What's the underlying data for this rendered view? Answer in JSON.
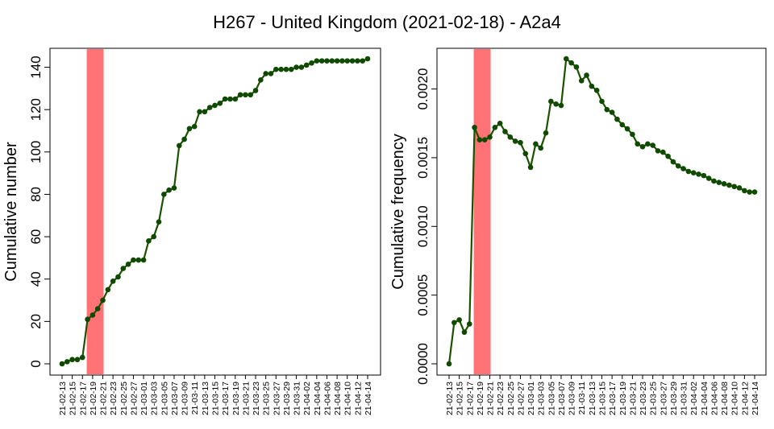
{
  "title": "H267 - United Kingdom (2021-02-18) - A2a4",
  "colors": {
    "line": "#1a5200",
    "point": "#0f4a00",
    "highlight": "#ff7276",
    "axis": "#000000"
  },
  "chart_data": [
    {
      "type": "line",
      "ylabel": "Cumulative number",
      "ylim": [
        0,
        144
      ],
      "yticks": [
        "0",
        "20",
        "40",
        "60",
        "80",
        "100",
        "120",
        "140"
      ],
      "highlight_x": [
        "21-02-18",
        "21-02-21"
      ],
      "x": [
        "21-02-13",
        "21-02-14",
        "21-02-15",
        "21-02-16",
        "21-02-17",
        "21-02-18",
        "21-02-19",
        "21-02-20",
        "21-02-21",
        "21-02-22",
        "21-02-23",
        "21-02-24",
        "21-02-25",
        "21-02-26",
        "21-02-27",
        "21-02-28",
        "21-03-01",
        "21-03-02",
        "21-03-03",
        "21-03-04",
        "21-03-05",
        "21-03-06",
        "21-03-07",
        "21-03-08",
        "21-03-09",
        "21-03-10",
        "21-03-11",
        "21-03-12",
        "21-03-13",
        "21-03-14",
        "21-03-15",
        "21-03-16",
        "21-03-17",
        "21-03-18",
        "21-03-19",
        "21-03-20",
        "21-03-21",
        "21-03-22",
        "21-03-23",
        "21-03-24",
        "21-03-25",
        "21-03-26",
        "21-03-27",
        "21-03-28",
        "21-03-29",
        "21-03-30",
        "21-03-31",
        "21-04-01",
        "21-04-02",
        "21-04-03",
        "21-04-04",
        "21-04-05",
        "21-04-06",
        "21-04-07",
        "21-04-08",
        "21-04-09",
        "21-04-10",
        "21-04-11",
        "21-04-12",
        "21-04-13",
        "21-04-14"
      ],
      "xtick_labels": [
        "21-02-13",
        "21-02-15",
        "21-02-17",
        "21-02-19",
        "21-02-21",
        "21-02-23",
        "21-02-25",
        "21-02-27",
        "21-03-01",
        "21-03-03",
        "21-03-05",
        "21-03-07",
        "21-03-09",
        "21-03-11",
        "21-03-13",
        "21-03-15",
        "21-03-17",
        "21-03-19",
        "21-03-21",
        "21-03-23",
        "21-03-25",
        "21-03-27",
        "21-03-29",
        "21-03-31",
        "21-04-02",
        "21-04-04",
        "21-04-06",
        "21-04-08",
        "21-04-10",
        "21-04-12",
        "21-04-14"
      ],
      "values": [
        0,
        1,
        2,
        2,
        3,
        21,
        23,
        26,
        30,
        35,
        39,
        41,
        45,
        47,
        49,
        49,
        49,
        58,
        60,
        67,
        80,
        82,
        83,
        103,
        106,
        111,
        112,
        119,
        119,
        121,
        122,
        123,
        125,
        125,
        125,
        127,
        127,
        127,
        129,
        134,
        137,
        137,
        139,
        139,
        139,
        139,
        140,
        140,
        141,
        142,
        143,
        143,
        143,
        143,
        143,
        143,
        143,
        143,
        143,
        143,
        144
      ]
    },
    {
      "type": "line",
      "ylabel": "Cumulative frequency",
      "ylim": [
        0,
        0.00222
      ],
      "yticks": [
        "0.0000",
        "0.0005",
        "0.0010",
        "0.0015",
        "0.0020"
      ],
      "highlight_x": [
        "21-02-18",
        "21-02-21"
      ],
      "x": [
        "21-02-13",
        "21-02-14",
        "21-02-15",
        "21-02-16",
        "21-02-17",
        "21-02-18",
        "21-02-19",
        "21-02-20",
        "21-02-21",
        "21-02-22",
        "21-02-23",
        "21-02-24",
        "21-02-25",
        "21-02-26",
        "21-02-27",
        "21-02-28",
        "21-03-01",
        "21-03-02",
        "21-03-03",
        "21-03-04",
        "21-03-05",
        "21-03-06",
        "21-03-07",
        "21-03-08",
        "21-03-09",
        "21-03-10",
        "21-03-11",
        "21-03-12",
        "21-03-13",
        "21-03-14",
        "21-03-15",
        "21-03-16",
        "21-03-17",
        "21-03-18",
        "21-03-19",
        "21-03-20",
        "21-03-21",
        "21-03-22",
        "21-03-23",
        "21-03-24",
        "21-03-25",
        "21-03-26",
        "21-03-27",
        "21-03-28",
        "21-03-29",
        "21-03-30",
        "21-03-31",
        "21-04-01",
        "21-04-02",
        "21-04-03",
        "21-04-04",
        "21-04-05",
        "21-04-06",
        "21-04-07",
        "21-04-08",
        "21-04-09",
        "21-04-10",
        "21-04-11",
        "21-04-12",
        "21-04-13",
        "21-04-14"
      ],
      "xtick_labels": [
        "21-02-13",
        "21-02-15",
        "21-02-17",
        "21-02-19",
        "21-02-21",
        "21-02-23",
        "21-02-25",
        "21-02-27",
        "21-03-01",
        "21-03-03",
        "21-03-05",
        "21-03-07",
        "21-03-09",
        "21-03-11",
        "21-03-13",
        "21-03-15",
        "21-03-17",
        "21-03-19",
        "21-03-21",
        "21-03-23",
        "21-03-25",
        "21-03-27",
        "21-03-29",
        "21-03-31",
        "21-04-02",
        "21-04-04",
        "21-04-06",
        "21-04-08",
        "21-04-10",
        "21-04-12",
        "21-04-14"
      ],
      "values": [
        0.0,
        0.0003,
        0.00032,
        0.00023,
        0.00029,
        0.00172,
        0.00163,
        0.00163,
        0.00165,
        0.00172,
        0.00175,
        0.00169,
        0.00165,
        0.00162,
        0.00161,
        0.00153,
        0.00143,
        0.0016,
        0.00157,
        0.00168,
        0.00191,
        0.00189,
        0.00188,
        0.00222,
        0.00219,
        0.00216,
        0.00206,
        0.0021,
        0.00202,
        0.00199,
        0.00191,
        0.00185,
        0.00183,
        0.00178,
        0.00174,
        0.00171,
        0.00167,
        0.0016,
        0.00158,
        0.0016,
        0.00159,
        0.00155,
        0.00154,
        0.00151,
        0.00147,
        0.00144,
        0.00142,
        0.0014,
        0.00139,
        0.00138,
        0.00137,
        0.00135,
        0.00133,
        0.00132,
        0.00131,
        0.0013,
        0.00129,
        0.00128,
        0.00126,
        0.00125,
        0.00125
      ]
    }
  ]
}
